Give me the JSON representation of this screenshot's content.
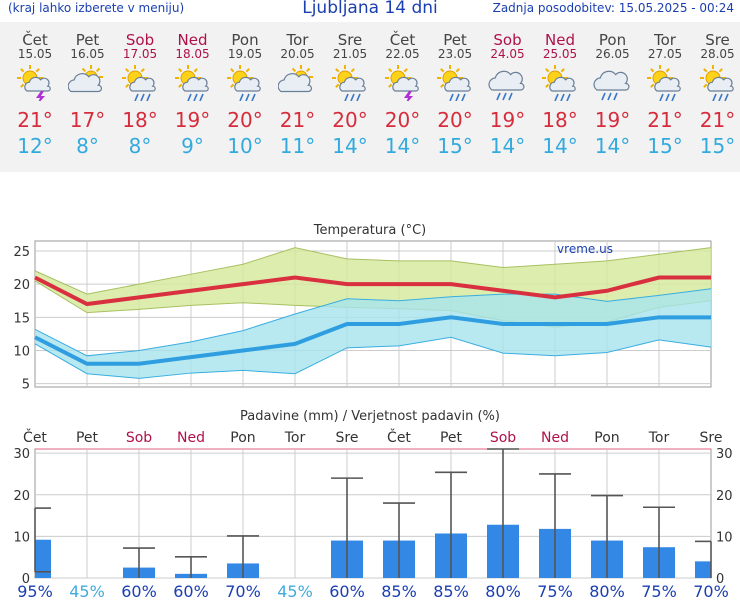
{
  "header": {
    "left": "(kraj lahko izberete v meniju)",
    "title": "Ljubljana 14 dni",
    "right": "Zadnja posodobitev: 15.05.2025 - 00:24"
  },
  "days": [
    {
      "name": "Čet",
      "date": "15.05",
      "weekend": false,
      "icon": "sun-thunder-icon",
      "tmax": "21°",
      "tmin": "12°"
    },
    {
      "name": "Pet",
      "date": "16.05",
      "weekend": false,
      "icon": "cloud-sun-icon",
      "tmax": "17°",
      "tmin": "8°"
    },
    {
      "name": "Sob",
      "date": "17.05",
      "weekend": true,
      "icon": "sun-rain-icon",
      "tmax": "18°",
      "tmin": "8°"
    },
    {
      "name": "Ned",
      "date": "18.05",
      "weekend": true,
      "icon": "sun-rain-icon",
      "tmax": "19°",
      "tmin": "9°"
    },
    {
      "name": "Pon",
      "date": "19.05",
      "weekend": false,
      "icon": "sun-rain-icon",
      "tmax": "20°",
      "tmin": "10°"
    },
    {
      "name": "Tor",
      "date": "20.05",
      "weekend": false,
      "icon": "cloud-sun-icon",
      "tmax": "21°",
      "tmin": "11°"
    },
    {
      "name": "Sre",
      "date": "21.05",
      "weekend": false,
      "icon": "sun-rain-icon",
      "tmax": "20°",
      "tmin": "14°"
    },
    {
      "name": "Čet",
      "date": "22.05",
      "weekend": false,
      "icon": "sun-thunder-icon",
      "tmax": "20°",
      "tmin": "14°"
    },
    {
      "name": "Pet",
      "date": "23.05",
      "weekend": false,
      "icon": "sun-rain-icon",
      "tmax": "20°",
      "tmin": "15°"
    },
    {
      "name": "Sob",
      "date": "24.05",
      "weekend": true,
      "icon": "cloud-rain-icon",
      "tmax": "19°",
      "tmin": "14°"
    },
    {
      "name": "Ned",
      "date": "25.05",
      "weekend": true,
      "icon": "sun-rain-icon",
      "tmax": "18°",
      "tmin": "14°"
    },
    {
      "name": "Pon",
      "date": "26.05",
      "weekend": false,
      "icon": "cloud-rain-icon",
      "tmax": "19°",
      "tmin": "14°"
    },
    {
      "name": "Tor",
      "date": "27.05",
      "weekend": false,
      "icon": "sun-rain-icon",
      "tmax": "21°",
      "tmin": "15°"
    },
    {
      "name": "Sre",
      "date": "28.05",
      "weekend": false,
      "icon": "sun-rain-icon",
      "tmax": "21°",
      "tmin": "15°"
    }
  ],
  "colors": {
    "weekend": "#b0104a",
    "tmax": "#d62c3c",
    "tmin": "#33aadd",
    "max_band": "#d4e89a",
    "min_band": "#a6e3ee",
    "bar": "#3388e6",
    "prob_high": "#1a3fb0",
    "prob_low": "#44aadd"
  },
  "chart_data": [
    {
      "type": "line",
      "title": "Temperatura (°C)",
      "watermark": "vreme.us",
      "x": [
        "Čet",
        "Pet",
        "Sob",
        "Ned",
        "Pon",
        "Tor",
        "Sre",
        "Čet",
        "Pet",
        "Sob",
        "Ned",
        "Pon",
        "Tor",
        "Sre"
      ],
      "ylim": [
        4.5,
        26.5
      ],
      "yticks": [
        5,
        10,
        15,
        20,
        25
      ],
      "grid": true,
      "series": [
        {
          "role": "max",
          "values": [
            21,
            17,
            18,
            19,
            20,
            21,
            20,
            20,
            20,
            19,
            18,
            19,
            21,
            21
          ],
          "band_high": [
            22,
            18.5,
            20,
            21.5,
            23,
            25.5,
            23.8,
            23.5,
            23.5,
            22.5,
            23,
            23.5,
            24.5,
            25.5
          ],
          "band_low": [
            20.5,
            15.7,
            16.2,
            16.8,
            17.2,
            16.8,
            16.5,
            16.3,
            16,
            14.5,
            13.5,
            14.3,
            16.5,
            17.5
          ]
        },
        {
          "role": "min",
          "values": [
            12,
            8,
            8,
            9,
            10,
            11,
            14,
            14,
            15,
            14,
            14,
            14,
            15,
            15
          ],
          "band_high": [
            13.2,
            9.2,
            10,
            11.3,
            13,
            15.5,
            17.8,
            17.5,
            18.1,
            18.5,
            18.5,
            17.4,
            18.3,
            19.3
          ],
          "band_low": [
            11,
            6.5,
            5.8,
            6.6,
            7,
            6.5,
            10.4,
            10.7,
            12,
            9.6,
            9.2,
            9.7,
            11.6,
            10.5
          ]
        }
      ]
    },
    {
      "type": "bar",
      "title": "Padavine (mm) / Verjetnost padavin (%)",
      "categories": [
        "Čet",
        "Pet",
        "Sob",
        "Ned",
        "Pon",
        "Tor",
        "Sre",
        "Čet",
        "Pet",
        "Sob",
        "Ned",
        "Pon",
        "Tor",
        "Sre"
      ],
      "values": [
        9.2,
        0,
        2.5,
        1,
        3.5,
        0,
        9,
        9,
        10.7,
        12.8,
        11.8,
        9,
        7.4,
        4
      ],
      "error_high": [
        16.8,
        0,
        7.2,
        5.1,
        10.1,
        0,
        24,
        18,
        25.4,
        31,
        25,
        19.8,
        17,
        8.8
      ],
      "error_low": [
        1.5,
        0,
        0,
        0,
        0,
        0,
        0,
        0,
        0,
        0,
        0,
        0,
        0,
        0
      ],
      "probabilities": [
        "95%",
        "45%",
        "60%",
        "60%",
        "70%",
        "45%",
        "60%",
        "85%",
        "85%",
        "80%",
        "75%",
        "80%",
        "75%",
        "70%"
      ],
      "probability_values": [
        95,
        45,
        60,
        60,
        70,
        45,
        60,
        85,
        85,
        80,
        75,
        80,
        75,
        70
      ],
      "ylim": [
        0,
        31
      ],
      "yticks": [
        0,
        10,
        20,
        30
      ],
      "grid": true
    }
  ]
}
